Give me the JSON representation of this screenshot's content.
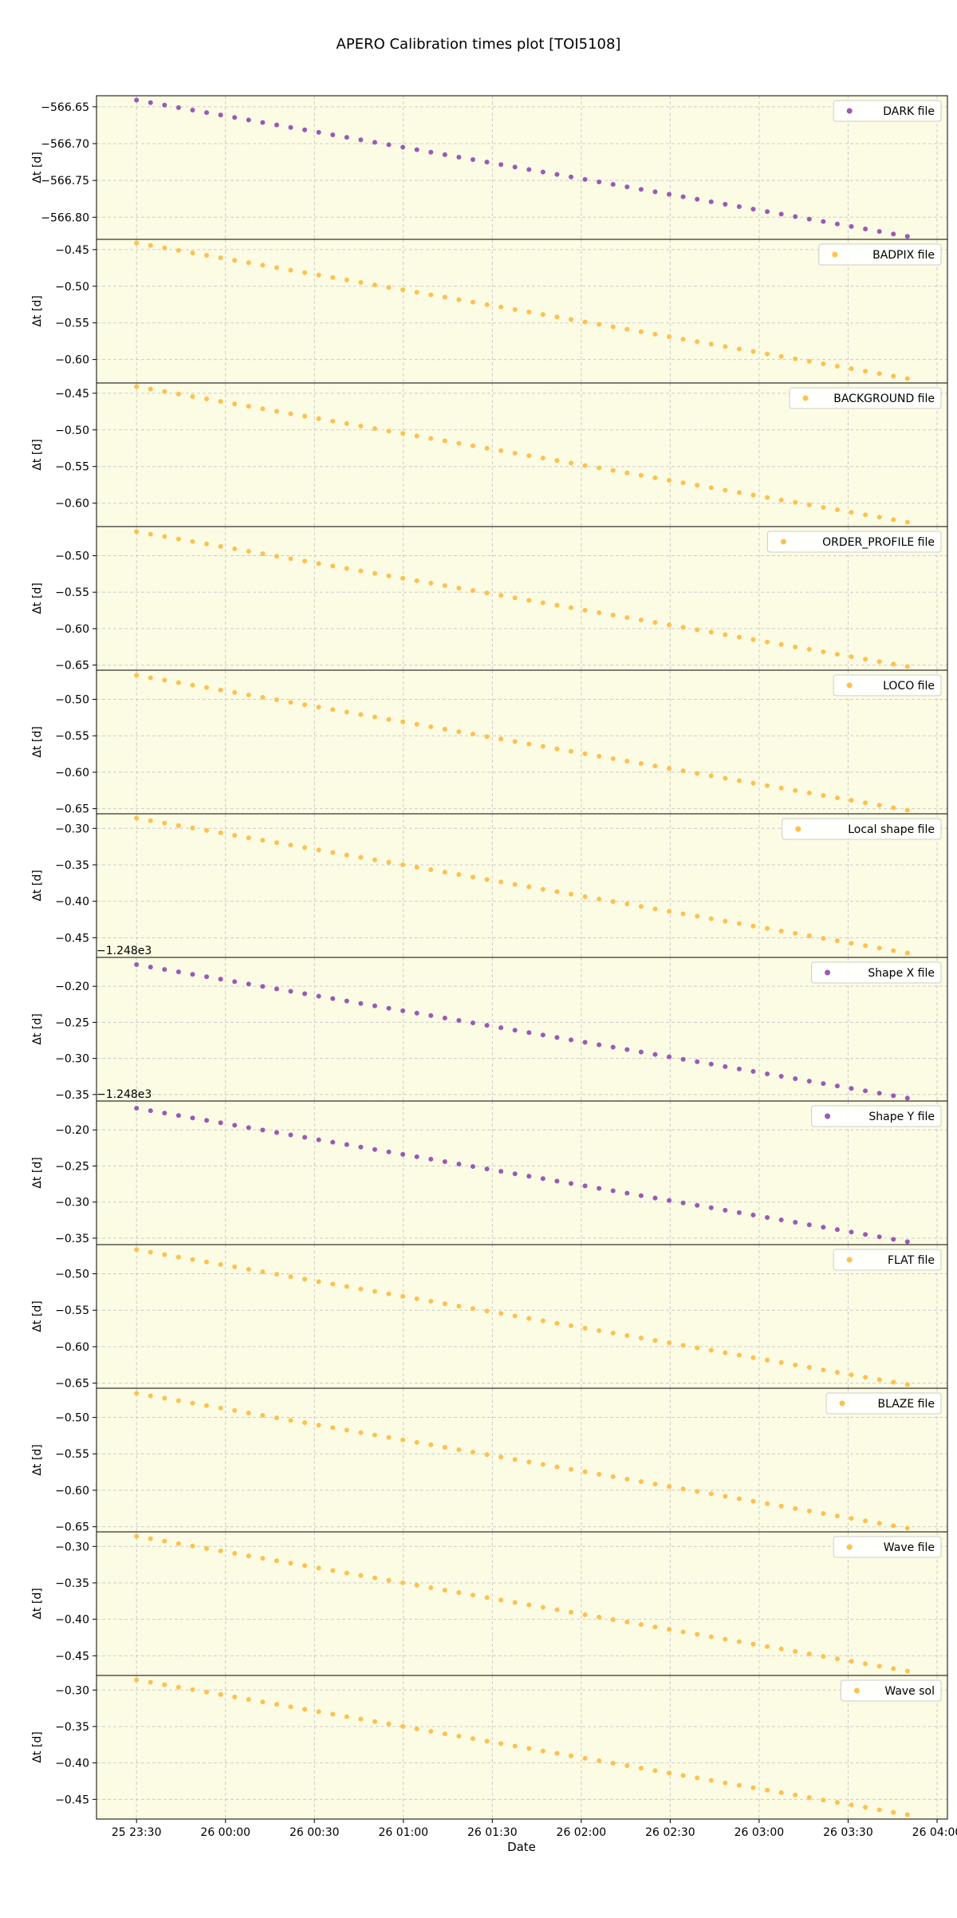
{
  "chart_data": {
    "type": "scatter",
    "title": "APERO Calibration times plot [TOI5108]",
    "xlabel": "Date",
    "ylabel": "Δt [d]",
    "x_ticks": [
      "25 23:30",
      "26 00:00",
      "26 00:30",
      "26 01:00",
      "26 01:30",
      "26 02:00",
      "26 02:30",
      "26 03:00",
      "26 03:30",
      "26 04:00"
    ],
    "x_range_minutes": [
      -13.5,
      273.5
    ],
    "x_start_minutes": 0,
    "x_end_minutes": 260,
    "n_points": 56,
    "grid": true,
    "legend_position": "upper right",
    "background_color": "#fcfce4",
    "colors": {
      "purple": "#9b59b6",
      "orange": "#ffc04d"
    },
    "panels": [
      {
        "name": "DARK file",
        "color": "#9b59b6",
        "y_start": -566.641,
        "y_end": -566.826,
        "ylim": [
          -566.83,
          -566.635
        ],
        "yticks": [
          -566.65,
          -566.7,
          -566.75,
          -566.8
        ],
        "tick_labels": [
          "−566.65",
          "−566.70",
          "−566.75",
          "−566.80"
        ],
        "offset_label": ""
      },
      {
        "name": "BADPIX file",
        "color": "#ffc04d",
        "y_start": -0.441,
        "y_end": -0.626,
        "ylim": [
          -0.632,
          -0.436
        ],
        "yticks": [
          -0.45,
          -0.5,
          -0.55,
          -0.6
        ],
        "tick_labels": [
          "−0.45",
          "−0.50",
          "−0.55",
          "−0.60"
        ],
        "offset_label": ""
      },
      {
        "name": "BACKGROUND file",
        "color": "#ffc04d",
        "y_start": -0.441,
        "y_end": -0.626,
        "ylim": [
          -0.632,
          -0.436
        ],
        "yticks": [
          -0.45,
          -0.5,
          -0.55,
          -0.6
        ],
        "tick_labels": [
          "−0.45",
          "−0.50",
          "−0.55",
          "−0.60"
        ],
        "offset_label": ""
      },
      {
        "name": "ORDER_PROFILE file",
        "color": "#ffc04d",
        "y_start": -0.467,
        "y_end": -0.652,
        "ylim": [
          -0.657,
          -0.46
        ],
        "yticks": [
          -0.5,
          -0.55,
          -0.6,
          -0.65
        ],
        "tick_labels": [
          "−0.50",
          "−0.55",
          "−0.60",
          "−0.65"
        ],
        "offset_label": ""
      },
      {
        "name": "LOCO file",
        "color": "#ffc04d",
        "y_start": -0.467,
        "y_end": -0.652,
        "ylim": [
          -0.657,
          -0.46
        ],
        "yticks": [
          -0.5,
          -0.55,
          -0.6,
          -0.65
        ],
        "tick_labels": [
          "−0.50",
          "−0.55",
          "−0.60",
          "−0.65"
        ],
        "offset_label": ""
      },
      {
        "name": "Local shape file",
        "color": "#ffc04d",
        "y_start": -0.286,
        "y_end": -0.471,
        "ylim": [
          -0.477,
          -0.28
        ],
        "yticks": [
          -0.3,
          -0.35,
          -0.4,
          -0.45
        ],
        "tick_labels": [
          "−0.30",
          "−0.35",
          "−0.40",
          "−0.45"
        ],
        "offset_label": ""
      },
      {
        "name": "Shape X file",
        "color": "#9b59b6",
        "y_start": -0.17,
        "y_end": -0.355,
        "ylim": [
          -0.359,
          -0.16
        ],
        "yticks": [
          -0.2,
          -0.25,
          -0.3,
          -0.35
        ],
        "tick_labels": [
          "−0.20",
          "−0.25",
          "−0.30",
          "−0.35"
        ],
        "offset_label": "−1.248e3"
      },
      {
        "name": "Shape Y file",
        "color": "#9b59b6",
        "y_start": -0.17,
        "y_end": -0.355,
        "ylim": [
          -0.359,
          -0.16
        ],
        "yticks": [
          -0.2,
          -0.25,
          -0.3,
          -0.35
        ],
        "tick_labels": [
          "−0.20",
          "−0.25",
          "−0.30",
          "−0.35"
        ],
        "offset_label": "−1.248e3"
      },
      {
        "name": "FLAT file",
        "color": "#ffc04d",
        "y_start": -0.467,
        "y_end": -0.652,
        "ylim": [
          -0.657,
          -0.46
        ],
        "yticks": [
          -0.5,
          -0.55,
          -0.6,
          -0.65
        ],
        "tick_labels": [
          "−0.50",
          "−0.55",
          "−0.60",
          "−0.65"
        ],
        "offset_label": ""
      },
      {
        "name": "BLAZE file",
        "color": "#ffc04d",
        "y_start": -0.467,
        "y_end": -0.652,
        "ylim": [
          -0.657,
          -0.46
        ],
        "yticks": [
          -0.5,
          -0.55,
          -0.6,
          -0.65
        ],
        "tick_labels": [
          "−0.50",
          "−0.55",
          "−0.60",
          "−0.65"
        ],
        "offset_label": ""
      },
      {
        "name": "Wave file",
        "color": "#ffc04d",
        "y_start": -0.286,
        "y_end": -0.471,
        "ylim": [
          -0.477,
          -0.28
        ],
        "yticks": [
          -0.3,
          -0.35,
          -0.4,
          -0.45
        ],
        "tick_labels": [
          "−0.30",
          "−0.35",
          "−0.40",
          "−0.45"
        ],
        "offset_label": ""
      },
      {
        "name": "Wave sol",
        "color": "#ffc04d",
        "y_start": -0.286,
        "y_end": -0.471,
        "ylim": [
          -0.477,
          -0.28
        ],
        "yticks": [
          -0.3,
          -0.35,
          -0.4,
          -0.45
        ],
        "tick_labels": [
          "−0.30",
          "−0.35",
          "−0.40",
          "−0.45"
        ],
        "offset_label": ""
      }
    ]
  }
}
